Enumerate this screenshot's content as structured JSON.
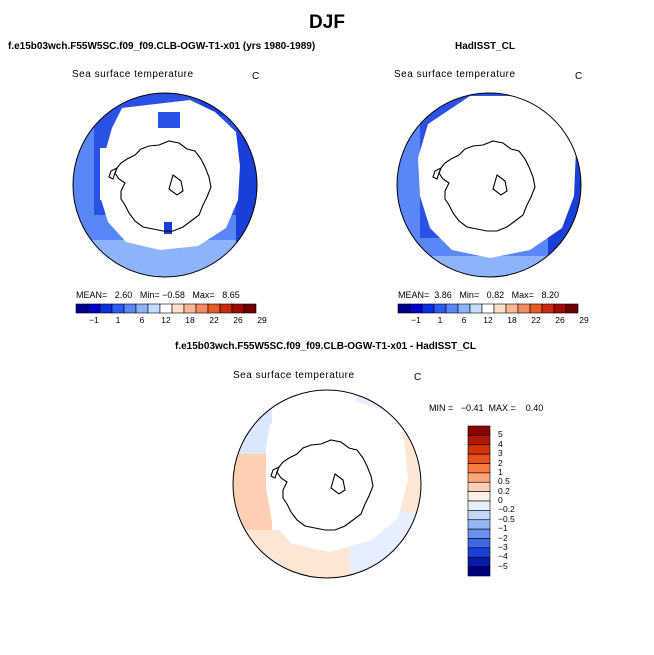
{
  "title": "DJF",
  "panels": [
    {
      "id": "model",
      "heading": "f.e15b03wch.F55W5SC.f09_f09.CLB-OGW-T1-x01 (yrs 1980-1989)",
      "variable": "Sea surface temperature",
      "units": "C",
      "stats": {
        "mean_label": "MEAN=",
        "mean": "2.60",
        "min_label": "Min=",
        "min": "−0.58",
        "max_label": "Max=",
        "max": "8.65"
      }
    },
    {
      "id": "obs",
      "heading": "HadISST_CL",
      "variable": "Sea surface temperature",
      "units": "C",
      "stats": {
        "mean_label": "MEAN=",
        "mean": "3.86",
        "min_label": "Min=",
        "min": "0.82",
        "max_label": "Max=",
        "max": "8.20"
      }
    }
  ],
  "colorbar": {
    "labels": [
      "−1",
      "1",
      "6",
      "12",
      "18",
      "22",
      "26",
      "29"
    ],
    "colors": [
      "#00008c",
      "#0000c8",
      "#0a2fe0",
      "#2f5af0",
      "#5a87f5",
      "#8db4fb",
      "#c4dcfd",
      "#ffffff",
      "#fde0cc",
      "#fbb895",
      "#f38c5e",
      "#e85a2c",
      "#cc2a10",
      "#9e0a05",
      "#700000"
    ]
  },
  "difference": {
    "heading": "f.e15b03wch.F55W5SC.f09_f09.CLB-OGW-T1-x01 - HadISST_CL",
    "variable": "Sea surface temperature",
    "units": "C",
    "minmax": "MIN =   −0.41  MAX =    0.40",
    "legend_labels": [
      "5",
      "4",
      "3",
      "2",
      "1",
      "0.5",
      "0.2",
      "0",
      "−0.2",
      "−0.5",
      "−1",
      "−2",
      "−3",
      "−4",
      "−5"
    ],
    "legend_colors": [
      "#8b0000",
      "#b01800",
      "#d4300a",
      "#ec4f1c",
      "#f67a42",
      "#fba679",
      "#fdd0b3",
      "#fdf0e6",
      "#e6efff",
      "#c4d7fb",
      "#96b6f6",
      "#6b91ef",
      "#3f67e6",
      "#1c3fd8",
      "#0a1aa8",
      "#000080"
    ]
  }
}
